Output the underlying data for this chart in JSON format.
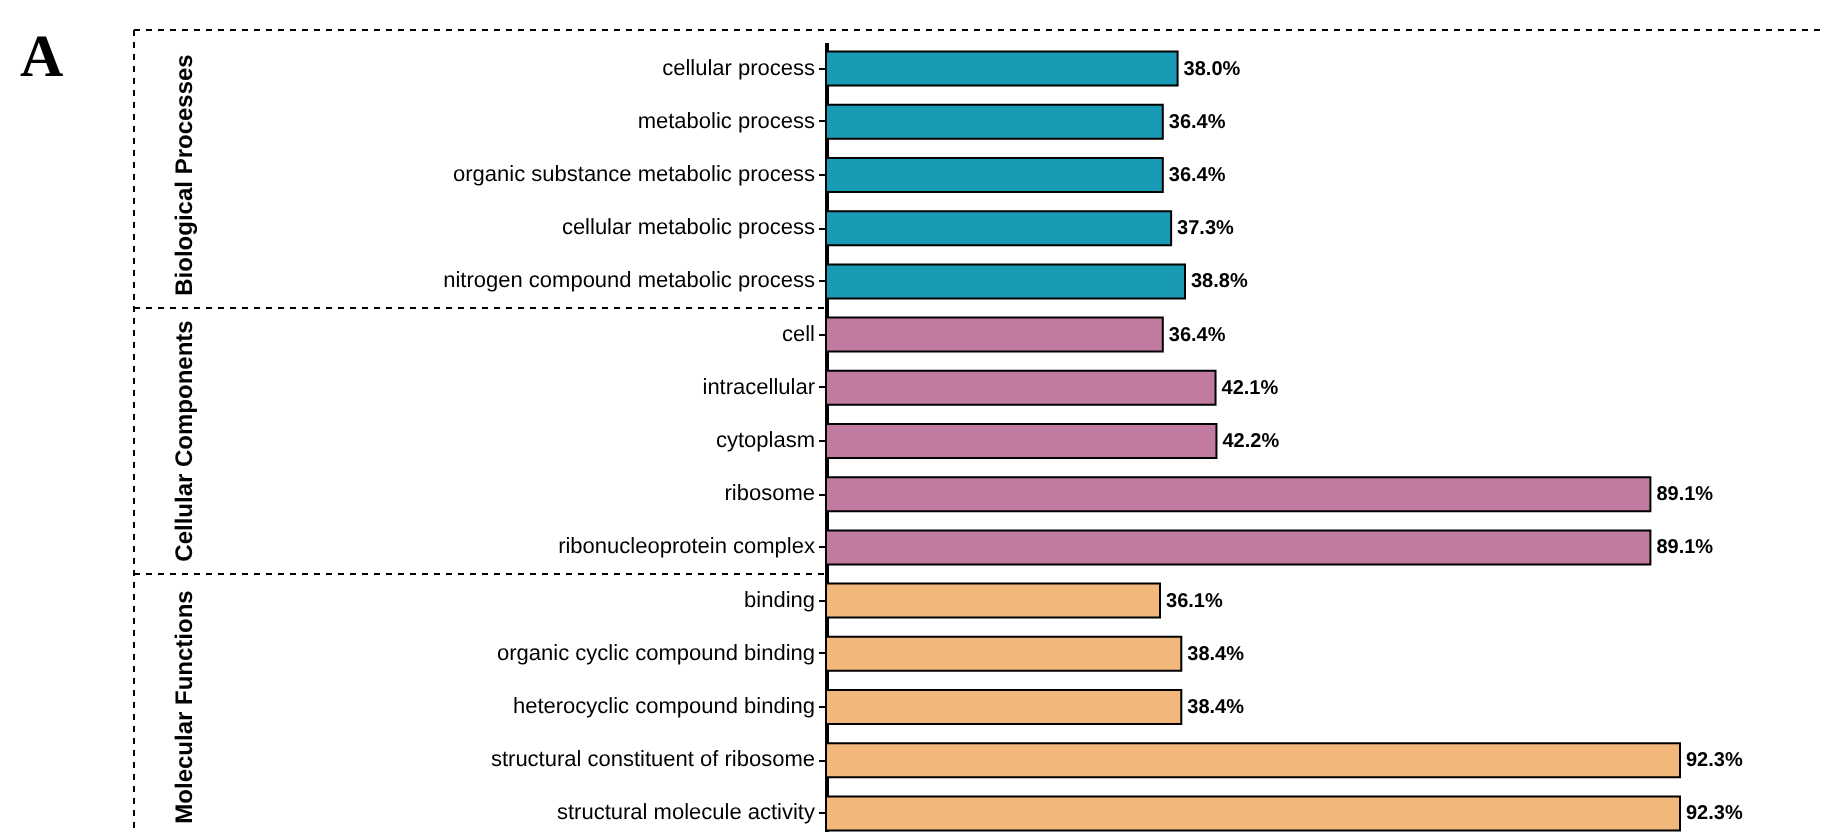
{
  "chart_data": {
    "type": "bar",
    "orientation": "horizontal",
    "annotations": [
      "A",
      "Biological Processes",
      "Cellular Components",
      "Molecular Functions"
    ],
    "categories": [
      "cellular process",
      "metabolic process",
      "organic substance metabolic process",
      "cellular metabolic process",
      "nitrogen compound metabolic process",
      "cell",
      "intracellular",
      "cytoplasm",
      "ribosome",
      "ribonucleoprotein complex",
      "binding",
      "organic cyclic compound binding",
      "heterocyclic compound binding",
      "structural constituent of ribosome",
      "structural molecule activity"
    ],
    "series": [
      {
        "color": "#1a9bb5",
        "values": [
          38.0,
          36.4,
          36.4,
          37.3,
          38.8,
          null,
          null,
          null,
          null,
          null,
          null,
          null,
          null,
          null,
          null
        ],
        "value_labels": [
          "38.0%",
          "36.4%",
          "36.4%",
          "37.3%",
          "38.8%",
          null,
          null,
          null,
          null,
          null,
          null,
          null,
          null,
          null,
          null
        ]
      },
      {
        "color": "#c27ba0",
        "values": [
          null,
          null,
          null,
          null,
          null,
          36.4,
          42.1,
          42.2,
          89.1,
          89.1,
          null,
          null,
          null,
          null,
          null
        ],
        "value_labels": [
          null,
          null,
          null,
          null,
          null,
          "36.4%",
          "42.1%",
          "42.2%",
          "89.1%",
          "89.1%",
          null,
          null,
          null,
          null,
          null
        ]
      },
      {
        "color": "#f2b77a",
        "values": [
          null,
          null,
          null,
          null,
          null,
          null,
          null,
          null,
          null,
          null,
          36.1,
          38.4,
          38.4,
          92.3,
          92.3
        ],
        "value_labels": [
          null,
          null,
          null,
          null,
          null,
          null,
          null,
          null,
          null,
          null,
          "36.1%",
          "38.4%",
          "38.4%",
          "92.3%",
          "92.3%"
        ]
      }
    ],
    "tick_labels": "y",
    "grid": false
  }
}
